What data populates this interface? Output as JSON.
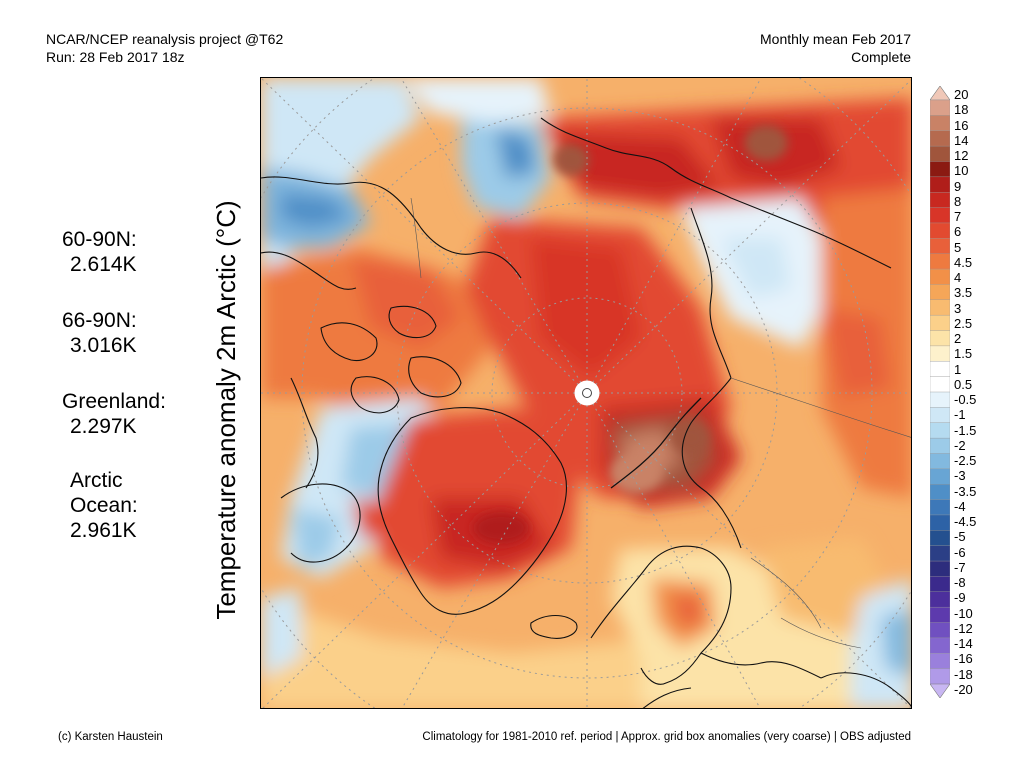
{
  "header": {
    "left_line1": "NCAR/NCEP reanalysis project @T62",
    "left_line2": "Run: 28 Feb 2017 18z",
    "right_line1": "Monthly mean Feb 2017",
    "right_line2": "Complete"
  },
  "axis_label": "Temperature anomaly 2m Arctic (°C)",
  "stats": [
    {
      "label": "60-90N:",
      "value": "2.614K"
    },
    {
      "label": "66-90N:",
      "value": "3.016K"
    },
    {
      "label": "Greenland:",
      "value": "2.297K"
    },
    {
      "label_line1": "Arctic",
      "label_line2": "Ocean:",
      "value": "2.961K"
    }
  ],
  "colorbar": {
    "labels": [
      "20",
      "18",
      "16",
      "14",
      "12",
      "10",
      "9",
      "8",
      "7",
      "6",
      "5",
      "4.5",
      "4",
      "3.5",
      "3",
      "2.5",
      "2",
      "1.5",
      "1",
      "0.5",
      "-0.5",
      "-1",
      "-1.5",
      "-2",
      "-2.5",
      "-3",
      "-3.5",
      "-4",
      "-4.5",
      "-5",
      "-6",
      "-7",
      "-8",
      "-9",
      "-10",
      "-12",
      "-14",
      "-16",
      "-18",
      "-20"
    ],
    "colors": [
      "#f0c8b8",
      "#dba08a",
      "#c98266",
      "#b56a4f",
      "#a0553c",
      "#8b1a12",
      "#b01e1a",
      "#c82820",
      "#d83528",
      "#e24a30",
      "#e8603a",
      "#ee7a40",
      "#f29048",
      "#f5a658",
      "#f8bb70",
      "#fbd08a",
      "#fce3a8",
      "#fdf1cc",
      "#ffffff",
      "#ffffff",
      "#e6f3fb",
      "#cfe7f6",
      "#b5dbf0",
      "#9ccbe8",
      "#82b9df",
      "#68a5d4",
      "#4f8fc7",
      "#3d78b8",
      "#2d62a6",
      "#24508f",
      "#2b3f86",
      "#2d2d7d",
      "#3b2a8c",
      "#4c2f9c",
      "#5d3aad",
      "#7050c0",
      "#8466cf",
      "#9a80dc",
      "#b09ae8",
      "#c8b6f2"
    ]
  },
  "footer": {
    "left": "(c) Karsten Haustein",
    "right": "Climatology for 1981-2010 ref. period | Approx. grid box anomalies (very coarse) | OBS adjusted"
  }
}
